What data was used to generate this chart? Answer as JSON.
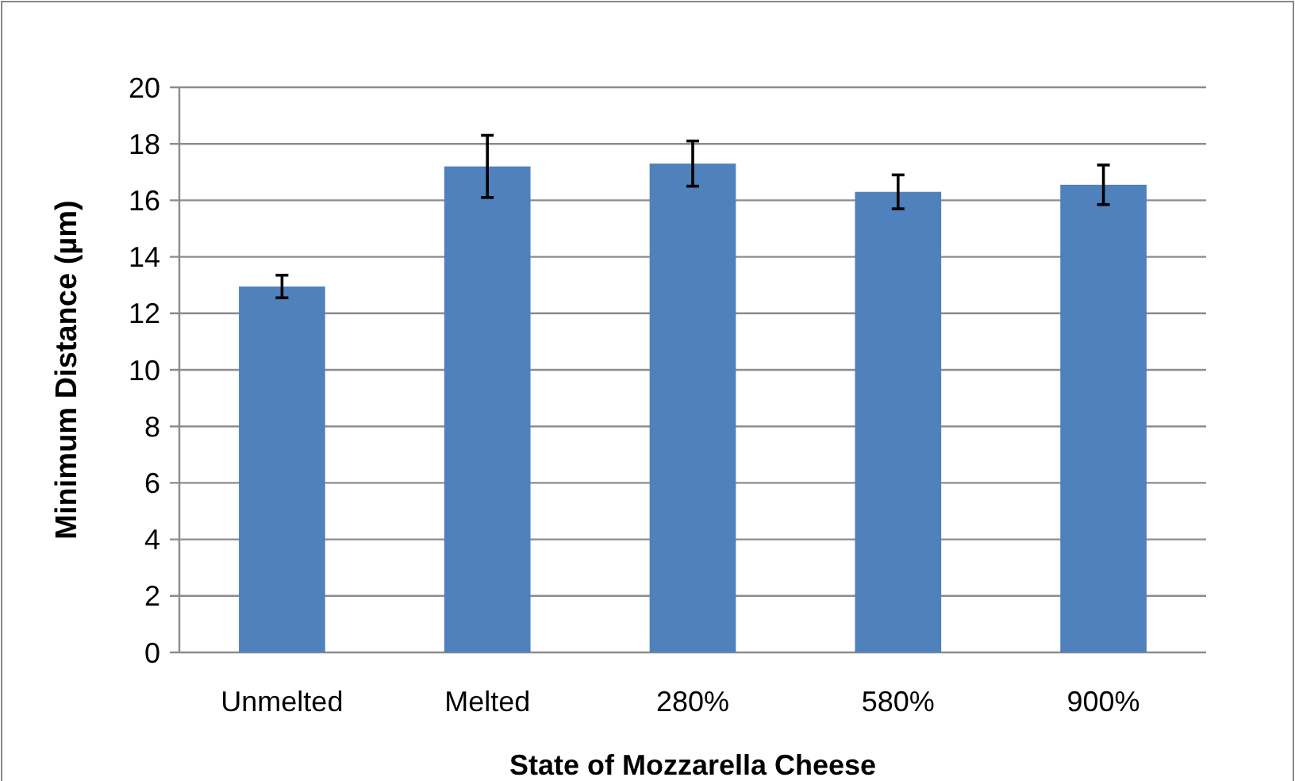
{
  "chart_data": {
    "type": "bar",
    "xlabel": "State of Mozzarella Cheese",
    "ylabel": "Minimum Distance (µm)",
    "categories": [
      "Unmelted",
      "Melted",
      "280%",
      "580%",
      "900%"
    ],
    "values": [
      12.95,
      17.2,
      17.3,
      16.3,
      16.55
    ],
    "errors": [
      0.4,
      1.1,
      0.8,
      0.6,
      0.7
    ],
    "color": "#4f81bd",
    "ylim": [
      0,
      20
    ],
    "yticks": [
      0,
      2,
      4,
      6,
      8,
      10,
      12,
      14,
      16,
      18,
      20
    ],
    "grid": "y"
  }
}
